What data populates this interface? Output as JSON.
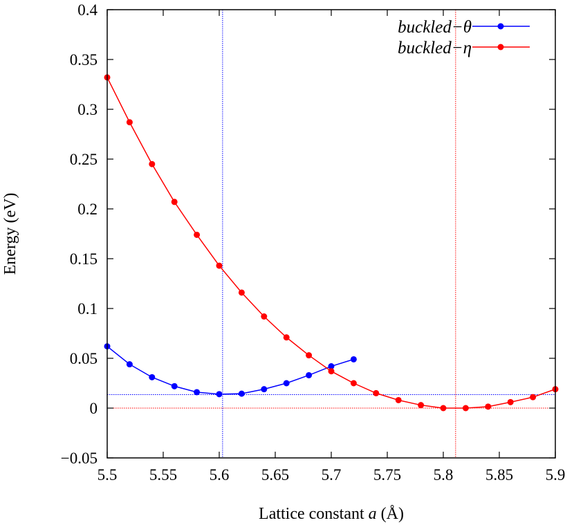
{
  "chart_data": {
    "type": "line",
    "xlabel": "Lattice constant a (Å)",
    "xlabel_parts": {
      "pre": "Lattice constant ",
      "var": "a",
      "post": " (Å)"
    },
    "ylabel": "Energy (eV)",
    "xlim": [
      5.5,
      5.9
    ],
    "ylim": [
      -0.05,
      0.4
    ],
    "xticks": [
      "5.5",
      "5.55",
      "5.6",
      "5.65",
      "5.7",
      "5.75",
      "5.8",
      "5.85",
      "5.9"
    ],
    "yticks": [
      "−0.05",
      "0",
      "0.05",
      "0.1",
      "0.15",
      "0.2",
      "0.25",
      "0.3",
      "0.35",
      "0.4"
    ],
    "grid": false,
    "legend_placement": "top-right",
    "series": [
      {
        "name": "buckled−θ",
        "color": "#0000ff",
        "x": [
          5.5,
          5.52,
          5.54,
          5.56,
          5.58,
          5.6,
          5.62,
          5.64,
          5.66,
          5.68,
          5.7,
          5.72
        ],
        "y": [
          0.062,
          0.044,
          0.031,
          0.022,
          0.016,
          0.014,
          0.0145,
          0.019,
          0.025,
          0.033,
          0.042,
          0.049
        ]
      },
      {
        "name": "buckled−η",
        "color": "#ff0000",
        "x": [
          5.5,
          5.52,
          5.54,
          5.56,
          5.58,
          5.6,
          5.62,
          5.64,
          5.66,
          5.68,
          5.7,
          5.72,
          5.74,
          5.76,
          5.78,
          5.8,
          5.82,
          5.84,
          5.86,
          5.88,
          5.9
        ],
        "y": [
          0.332,
          0.287,
          0.245,
          0.207,
          0.174,
          0.143,
          0.116,
          0.092,
          0.071,
          0.053,
          0.037,
          0.025,
          0.015,
          0.008,
          0.003,
          0.0,
          0.0,
          0.0015,
          0.006,
          0.011,
          0.019
        ]
      }
    ],
    "reference_lines": [
      {
        "orientation": "vertical",
        "value": 5.603,
        "color": "#0000ff",
        "style": "dotted"
      },
      {
        "orientation": "horizontal",
        "value": 0.0135,
        "color": "#0000ff",
        "style": "dotted"
      },
      {
        "orientation": "vertical",
        "value": 5.811,
        "color": "#ff0000",
        "style": "dotted"
      },
      {
        "orientation": "horizontal",
        "value": 0.0,
        "color": "#ff0000",
        "style": "dotted"
      }
    ]
  }
}
